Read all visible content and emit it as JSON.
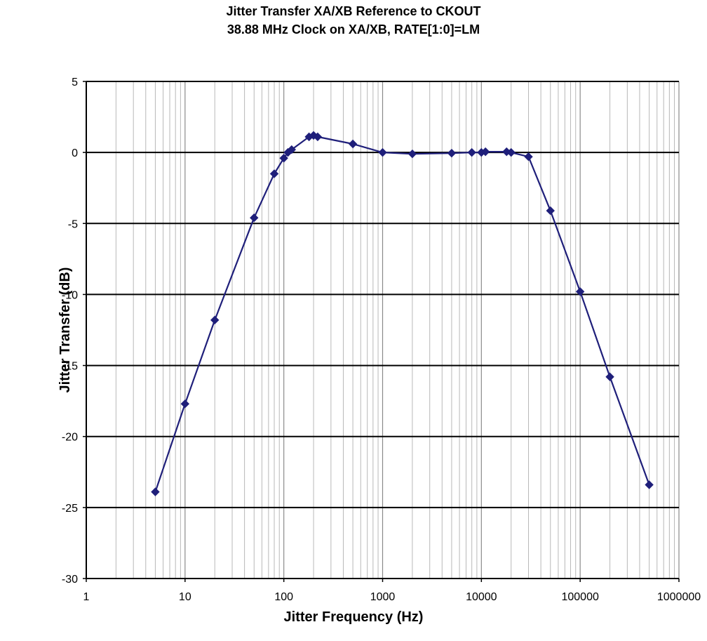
{
  "chart_data": {
    "type": "line",
    "title": "Jitter Transfer XA/XB Reference to CKOUT",
    "subtitle": "38.88 MHz Clock on XA/XB, RATE[1:0]=LM",
    "xlabel": "Jitter Frequency (Hz)",
    "ylabel": "Jitter Transfer (dB)",
    "x_scale": "log",
    "xlim": [
      1,
      1000000
    ],
    "ylim": [
      -30,
      5
    ],
    "x_ticks": [
      "1",
      "10",
      "100",
      "1000",
      "10000",
      "100000",
      "1000000"
    ],
    "y_ticks": [
      "5",
      "0",
      "-5",
      "-10",
      "-15",
      "-20",
      "-25",
      "-30"
    ],
    "grid": true,
    "legend": "none",
    "series": [
      {
        "color": "#1f1f7a",
        "marker": "diamond",
        "x": [
          5,
          10,
          20,
          50,
          80,
          100,
          110,
          120,
          180,
          200,
          220,
          500,
          1000,
          2000,
          5000,
          8000,
          10000,
          11000,
          18000,
          20000,
          30000,
          50000,
          100000,
          200000,
          500000
        ],
        "y": [
          -23.9,
          -17.7,
          -11.8,
          -4.6,
          -1.5,
          -0.4,
          0.0,
          0.2,
          1.1,
          1.2,
          1.1,
          0.6,
          0.0,
          -0.1,
          -0.05,
          0.0,
          0.0,
          0.05,
          0.05,
          0.0,
          -0.3,
          -4.1,
          -9.8,
          -15.8,
          -23.4
        ]
      }
    ]
  }
}
